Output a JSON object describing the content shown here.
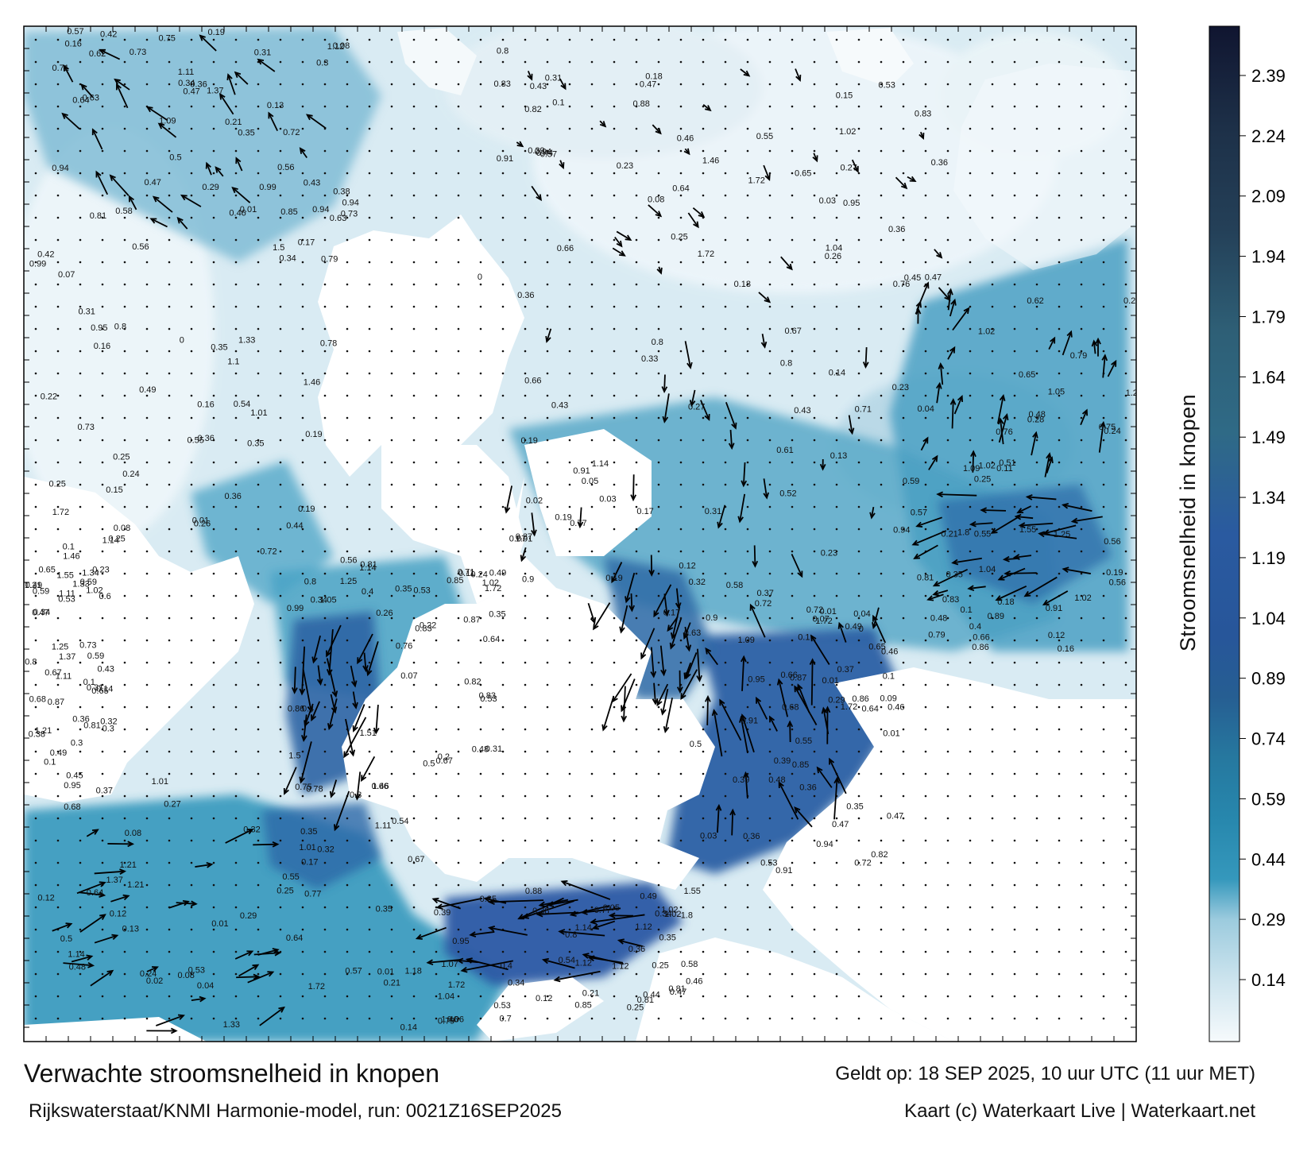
{
  "map": {
    "title": "Verwachte stroomsnelheid in knopen",
    "source": "Rijkswaterstaat/KNMI Harmonie-model, run: 0021Z16SEP2025",
    "valid_time": "Geldt op: 18 SEP 2025, 10 uur UTC (11 uur MET)",
    "credit": "Kaart (c) Waterkaart Live | Waterkaart.net"
  },
  "colorbar": {
    "title": "Stroomsnelheid in knopen",
    "ticks": [
      "2.39",
      "2.24",
      "2.09",
      "1.94",
      "1.79",
      "1.64",
      "1.49",
      "1.34",
      "1.19",
      "1.04",
      "0.89",
      "0.74",
      "0.59",
      "0.44",
      "0.29",
      "0.14"
    ],
    "colors": [
      "#f6fafc",
      "#cde4ee",
      "#9ccbde",
      "#62afcc",
      "#3598bc",
      "#2787ad",
      "#26789f",
      "#256995",
      "#265e92",
      "#27569a",
      "#2a5aa0",
      "#2e5f94",
      "#2f6a86",
      "#2e5f76",
      "#2a4f6a",
      "#244058",
      "#1d3048",
      "#16213a",
      "#101530"
    ]
  },
  "speed_labels": [
    {
      "t": "0.17"
    },
    {
      "t": "0.14"
    },
    {
      "t": "0.21"
    },
    {
      "t": "0.3"
    },
    {
      "t": "0.42"
    },
    {
      "t": "0.19"
    },
    {
      "t": "0.2"
    },
    {
      "t": "0.47"
    },
    {
      "t": "0.28"
    },
    {
      "t": "0.16"
    },
    {
      "t": "0.1"
    },
    {
      "t": "0.04"
    },
    {
      "t": "0.13"
    },
    {
      "t": "0.34"
    },
    {
      "t": "0.46"
    },
    {
      "t": "0.43"
    },
    {
      "t": "0.24"
    },
    {
      "t": "0.31"
    },
    {
      "t": "0.53"
    },
    {
      "t": "0.02"
    },
    {
      "t": "0.03"
    },
    {
      "t": "0.08"
    },
    {
      "t": "0.12"
    },
    {
      "t": "0.11"
    },
    {
      "t": "0.09"
    },
    {
      "t": "0.18"
    },
    {
      "t": "0.26"
    },
    {
      "t": "0.05"
    },
    {
      "t": "0.15"
    },
    {
      "t": "0.07"
    },
    {
      "t": "0.06"
    },
    {
      "t": "0.27"
    },
    {
      "t": "0.22"
    },
    {
      "t": "0.33"
    },
    {
      "t": "0.39"
    },
    {
      "t": "0.45"
    },
    {
      "t": "0.23"
    },
    {
      "t": "0.29"
    },
    {
      "t": "0.35"
    },
    {
      "t": "0.32"
    },
    {
      "t": "0.25"
    },
    {
      "t": "0.41"
    },
    {
      "t": "0.44"
    },
    {
      "t": "0.38"
    },
    {
      "t": "0.51"
    },
    {
      "t": "0.36"
    },
    {
      "t": "0.37"
    },
    {
      "t": "0.4"
    },
    {
      "t": "0.5"
    },
    {
      "t": "0.52"
    },
    {
      "t": "0.54"
    },
    {
      "t": "0.6"
    },
    {
      "t": "0.62"
    },
    {
      "t": "0.58"
    },
    {
      "t": "0.64"
    },
    {
      "t": "0.65"
    },
    {
      "t": "0.67"
    },
    {
      "t": "0.71"
    },
    {
      "t": "0.77"
    },
    {
      "t": "0.75"
    },
    {
      "t": "0.82"
    },
    {
      "t": "0.76"
    },
    {
      "t": "0.85"
    },
    {
      "t": "0.88"
    },
    {
      "t": "0.93"
    },
    {
      "t": "0.99"
    },
    {
      "t": "1.02"
    },
    {
      "t": "1.05"
    },
    {
      "t": "1.12"
    },
    {
      "t": "1.37"
    },
    {
      "t": "1.51"
    },
    {
      "t": "1.46"
    },
    {
      "t": "1.33"
    },
    {
      "t": "1.07"
    },
    {
      "t": "1.21"
    },
    {
      "t": "0.83"
    },
    {
      "t": "1.18"
    },
    {
      "t": "1.55"
    },
    {
      "t": "1.34"
    },
    {
      "t": "1.72"
    },
    {
      "t": "1.8"
    },
    {
      "t": "1.25"
    },
    {
      "t": "0.56"
    },
    {
      "t": "0.61"
    },
    {
      "t": "0.66"
    },
    {
      "t": "0.49"
    },
    {
      "t": "0.57"
    },
    {
      "t": "0.53"
    },
    {
      "t": "0.63"
    },
    {
      "t": "0.68"
    },
    {
      "t": "0.72"
    },
    {
      "t": "0.81"
    },
    {
      "t": "0.95"
    },
    {
      "t": "0.94"
    },
    {
      "t": "0.89"
    },
    {
      "t": "0.55"
    },
    {
      "t": "0.59"
    },
    {
      "t": "0.48"
    },
    {
      "t": "0.37"
    },
    {
      "t": "0.47"
    },
    {
      "t": "0.35"
    },
    {
      "t": "0.01"
    },
    {
      "t": "0"
    },
    {
      "t": "0.69"
    },
    {
      "t": "0.7"
    },
    {
      "t": "0.79"
    },
    {
      "t": "0.8"
    },
    {
      "t": "0.87"
    },
    {
      "t": "0.91"
    },
    {
      "t": "1.1"
    },
    {
      "t": "1.09"
    },
    {
      "t": "1.13"
    },
    {
      "t": "0.9"
    },
    {
      "t": "1.04"
    },
    {
      "t": "1.01"
    },
    {
      "t": "1.14"
    },
    {
      "t": "0.78"
    },
    {
      "t": "0.73"
    },
    {
      "t": "0.86"
    },
    {
      "t": "1.27"
    },
    {
      "t": "1.5"
    },
    {
      "t": "1.11"
    }
  ]
}
